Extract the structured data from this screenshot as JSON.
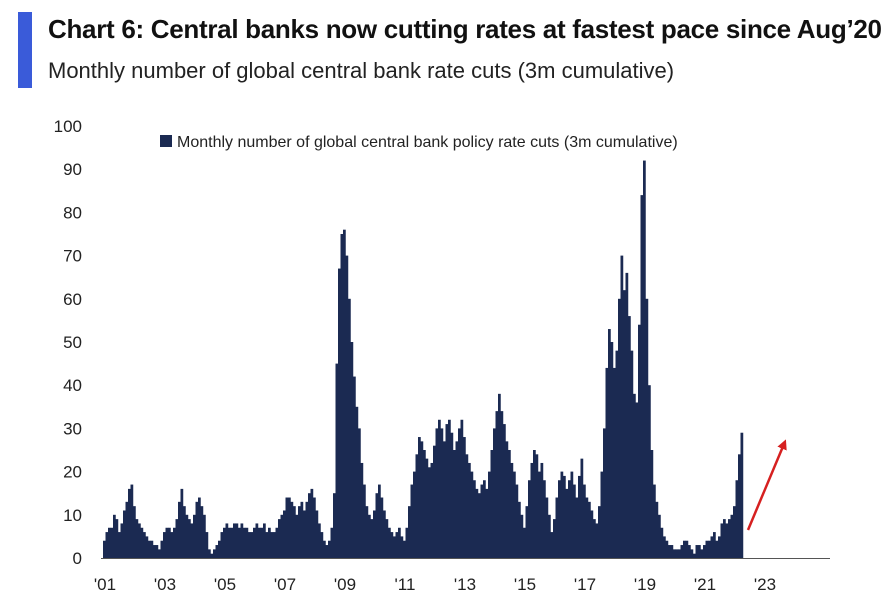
{
  "header": {
    "title": "Chart 6: Central banks now cutting rates at fastest pace since Aug’20",
    "subtitle": "Monthly number of global central bank rate cuts (3m cumulative)"
  },
  "colors": {
    "accent": "#3a5bd9",
    "bar": "#1b2a52",
    "arrow": "#d62020"
  },
  "chart_data": {
    "type": "bar",
    "title": "Chart 6: Central banks now cutting rates at fastest pace since Aug’20",
    "subtitle": "Monthly number of global central bank rate cuts (3m cumulative)",
    "xlabel": "",
    "ylabel": "",
    "ylim": [
      0,
      100
    ],
    "yticks": [
      "0",
      "10",
      "20",
      "30",
      "40",
      "50",
      "60",
      "70",
      "80",
      "90",
      "100"
    ],
    "xtick_labels": [
      "'01",
      "'03",
      "'05",
      "'07",
      "'09",
      "'11",
      "'13",
      "'15",
      "'17",
      "'19",
      "'21",
      "'23"
    ],
    "start": "2001-01",
    "frequency": "monthly",
    "legend": {
      "label": "Monthly number of global central bank policy rate cuts (3m cumulative)",
      "position": "top"
    },
    "annotation": "red arrow pointing up at latest readings",
    "series": [
      {
        "name": "Monthly number of global central bank policy rate cuts (3m cumulative)",
        "values": [
          4,
          6,
          7,
          7,
          10,
          9,
          6,
          8,
          11,
          13,
          16,
          17,
          12,
          9,
          8,
          7,
          6,
          5,
          4,
          4,
          3,
          3,
          2,
          4,
          6,
          7,
          7,
          6,
          7,
          9,
          13,
          16,
          12,
          10,
          9,
          8,
          10,
          13,
          14,
          12,
          10,
          6,
          2,
          1,
          2,
          3,
          4,
          6,
          7,
          8,
          7,
          7,
          8,
          8,
          7,
          8,
          7,
          7,
          6,
          6,
          7,
          8,
          7,
          7,
          8,
          6,
          7,
          6,
          6,
          7,
          9,
          10,
          11,
          14,
          14,
          13,
          12,
          10,
          12,
          13,
          11,
          13,
          15,
          16,
          14,
          11,
          8,
          6,
          4,
          3,
          4,
          7,
          15,
          45,
          67,
          75,
          76,
          70,
          60,
          50,
          42,
          35,
          30,
          22,
          17,
          12,
          10,
          9,
          11,
          15,
          17,
          14,
          11,
          9,
          7,
          6,
          5,
          6,
          7,
          5,
          4,
          7,
          12,
          17,
          20,
          24,
          28,
          27,
          25,
          23,
          21,
          22,
          26,
          30,
          32,
          30,
          27,
          31,
          32,
          29,
          25,
          27,
          30,
          32,
          28,
          24,
          22,
          20,
          18,
          16,
          15,
          17,
          18,
          16,
          20,
          25,
          30,
          34,
          38,
          34,
          31,
          27,
          25,
          22,
          20,
          17,
          13,
          10,
          7,
          12,
          18,
          22,
          25,
          24,
          20,
          22,
          18,
          14,
          10,
          6,
          9,
          14,
          18,
          20,
          19,
          16,
          18,
          20,
          17,
          14,
          19,
          23,
          17,
          14,
          13,
          11,
          9,
          8,
          12,
          20,
          30,
          44,
          53,
          50,
          44,
          48,
          60,
          70,
          62,
          66,
          56,
          48,
          38,
          36,
          54,
          84,
          92,
          60,
          40,
          25,
          17,
          13,
          10,
          7,
          5,
          4,
          3,
          3,
          2,
          2,
          2,
          3,
          4,
          4,
          3,
          2,
          1,
          3,
          3,
          2,
          3,
          4,
          4,
          5,
          6,
          4,
          5,
          8,
          9,
          8,
          9,
          10,
          12,
          18,
          24,
          29
        ]
      }
    ]
  }
}
